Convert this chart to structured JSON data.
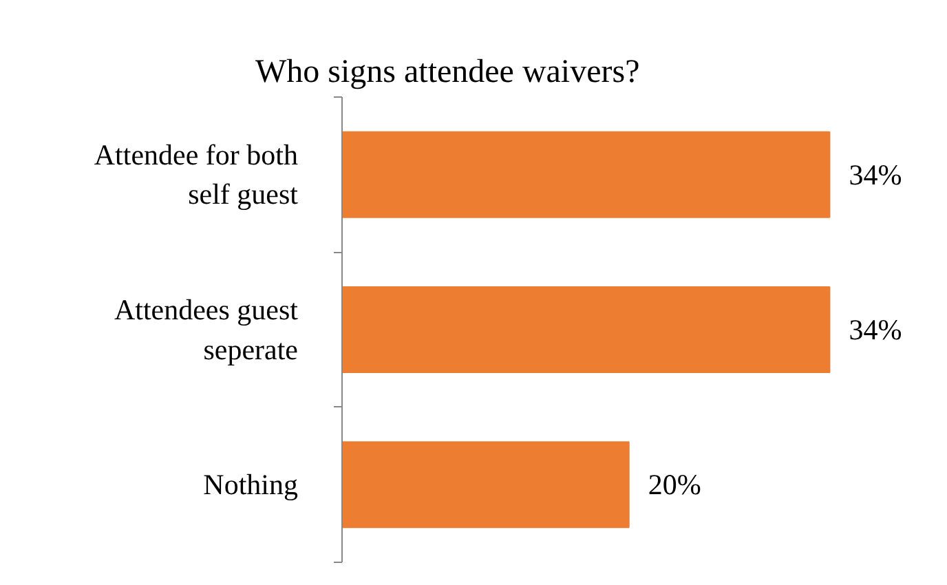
{
  "chart_data": {
    "type": "bar",
    "orientation": "horizontal",
    "title": "Who signs attendee waivers?",
    "categories": [
      "Attendee for both self guest",
      "Attendees guest seperate",
      "Nothing"
    ],
    "values": [
      34,
      34,
      20
    ],
    "color": "#ed7d31",
    "value_labels": [
      "34%",
      "34%",
      "20%"
    ]
  }
}
